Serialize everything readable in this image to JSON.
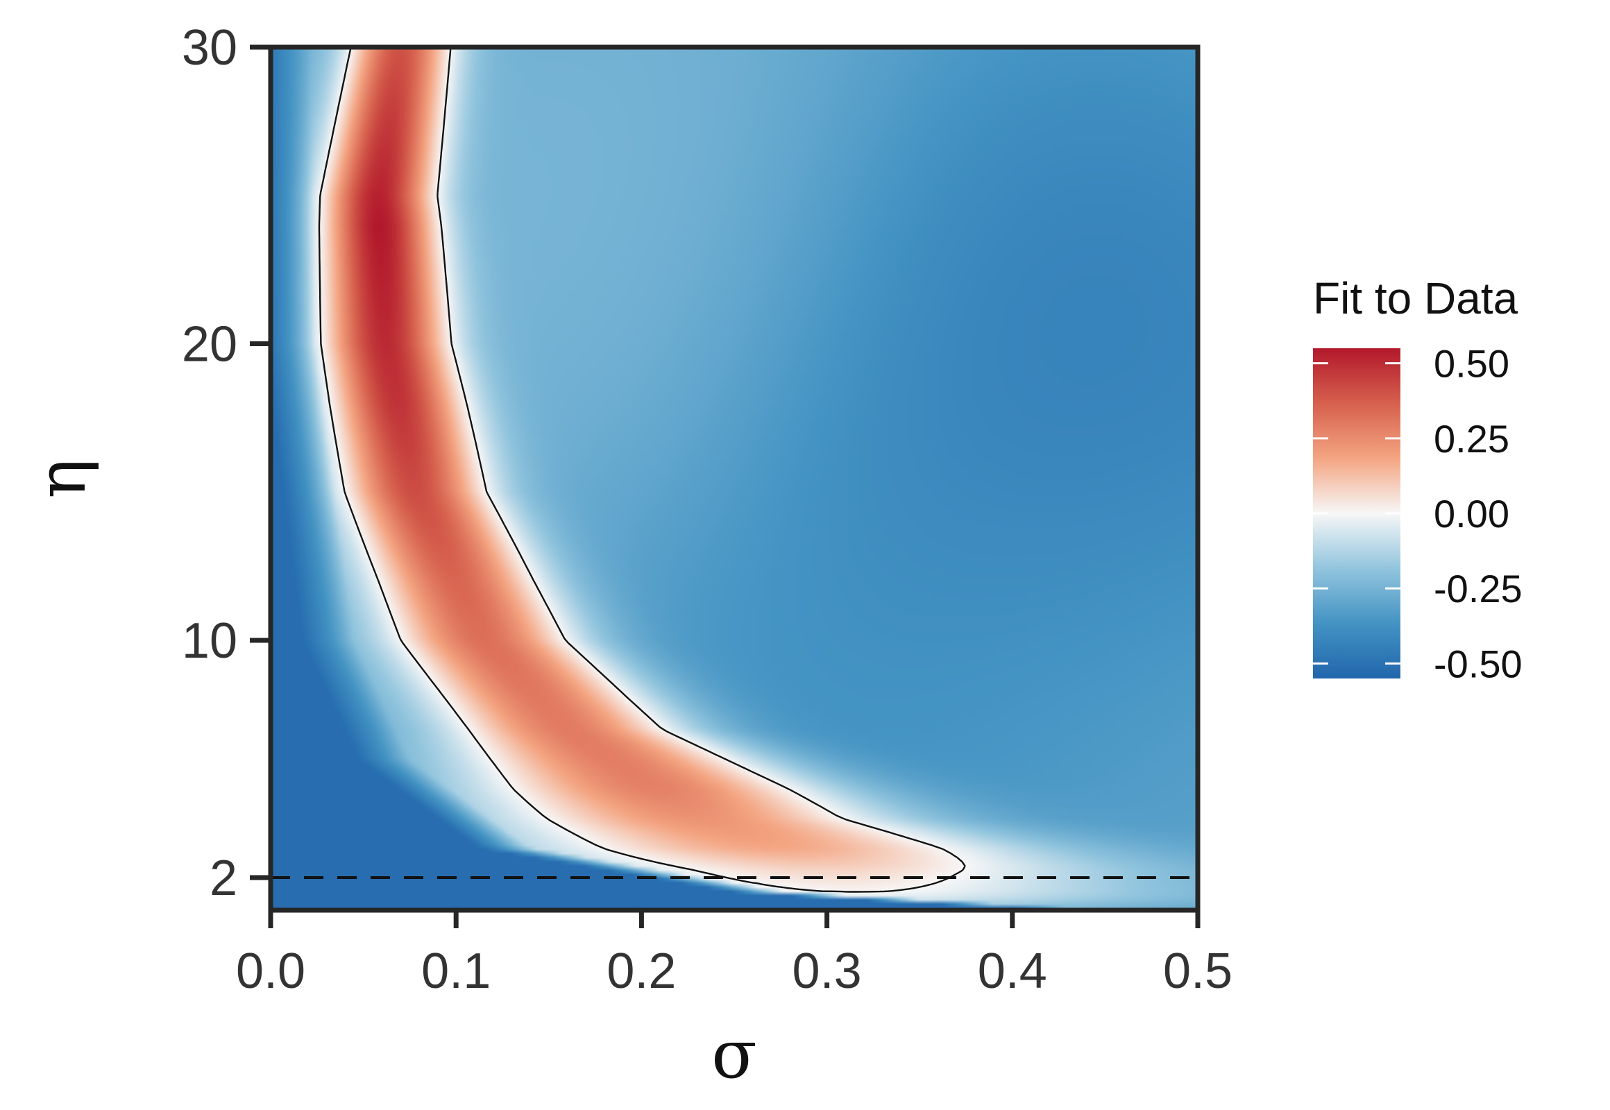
{
  "chart_data": {
    "type": "heatmap",
    "xlabel": "σ",
    "ylabel": "η",
    "xlim": [
      0.0,
      0.5
    ],
    "ylim": [
      0.9,
      30
    ],
    "x_ticks": [
      "0.0",
      "0.1",
      "0.2",
      "0.3",
      "0.4",
      "0.5"
    ],
    "x_tick_values": [
      0.0,
      0.1,
      0.2,
      0.3,
      0.4,
      0.5
    ],
    "y_ticks": [
      "2",
      "10",
      "20",
      "30"
    ],
    "y_tick_values": [
      2,
      10,
      20,
      30
    ],
    "reference_line": {
      "axis": "y",
      "value": 2,
      "style": "dashed"
    },
    "legend": {
      "title": "Fit to Data",
      "placement": "right",
      "labels": [
        "0.50",
        "0.25",
        "0.00",
        "-0.25",
        "-0.50"
      ],
      "values": [
        0.5,
        0.25,
        0.0,
        -0.25,
        -0.5
      ],
      "range": [
        -0.55,
        0.55
      ]
    },
    "colorscale": [
      "#2166ac",
      "#4393c3",
      "#92c5de",
      "#f7f7f7",
      "#f4a582",
      "#d6604d",
      "#b2182b"
    ],
    "contour_levels": [
      0.0
    ],
    "ridge": [
      {
        "eta": 30,
        "center": 0.07,
        "width": 0.028
      },
      {
        "eta": 25,
        "center": 0.058,
        "width": 0.03
      },
      {
        "eta": 20,
        "center": 0.062,
        "width": 0.034
      },
      {
        "eta": 15,
        "center": 0.078,
        "width": 0.04
      },
      {
        "eta": 10,
        "center": 0.115,
        "width": 0.052
      },
      {
        "eta": 7,
        "center": 0.16,
        "width": 0.065
      },
      {
        "eta": 4,
        "center": 0.23,
        "width": 0.11
      },
      {
        "eta": 2.3,
        "center": 0.3,
        "width": 0.16
      },
      {
        "eta": 1.3,
        "center": 0.32,
        "width": 0.17
      },
      {
        "eta": 0.9,
        "center": 0.3,
        "width": 0.16
      }
    ],
    "ridge_peak": [
      {
        "eta": 30,
        "value": 0.4
      },
      {
        "eta": 24,
        "value": 0.55
      },
      {
        "eta": 18,
        "value": 0.48
      },
      {
        "eta": 12,
        "value": 0.35
      },
      {
        "eta": 8,
        "value": 0.3
      },
      {
        "eta": 5,
        "value": 0.28
      },
      {
        "eta": 3,
        "value": 0.18
      },
      {
        "eta": 2.2,
        "value": 0.07
      },
      {
        "eta": 1.5,
        "value": 0.0
      },
      {
        "eta": 0.9,
        "value": -0.15
      }
    ],
    "background_field": [
      {
        "sigma": 0.18,
        "eta": 24,
        "value": -0.22
      },
      {
        "sigma": 0.42,
        "eta": 19,
        "value": -0.5
      },
      {
        "sigma": 0.36,
        "eta": 8,
        "value": -0.4
      },
      {
        "sigma": 0.47,
        "eta": 4,
        "value": -0.3
      }
    ],
    "low_sigma_edge": [
      {
        "eta": 30,
        "sigma": 0.022
      },
      {
        "eta": 20,
        "sigma": 0.024
      },
      {
        "eta": 10,
        "sigma": 0.045
      },
      {
        "eta": 6,
        "sigma": 0.075
      },
      {
        "eta": 3,
        "sigma": 0.14
      },
      {
        "eta": 1.5,
        "sigma": 0.28
      },
      {
        "eta": 0.9,
        "sigma": 0.45
      }
    ]
  }
}
